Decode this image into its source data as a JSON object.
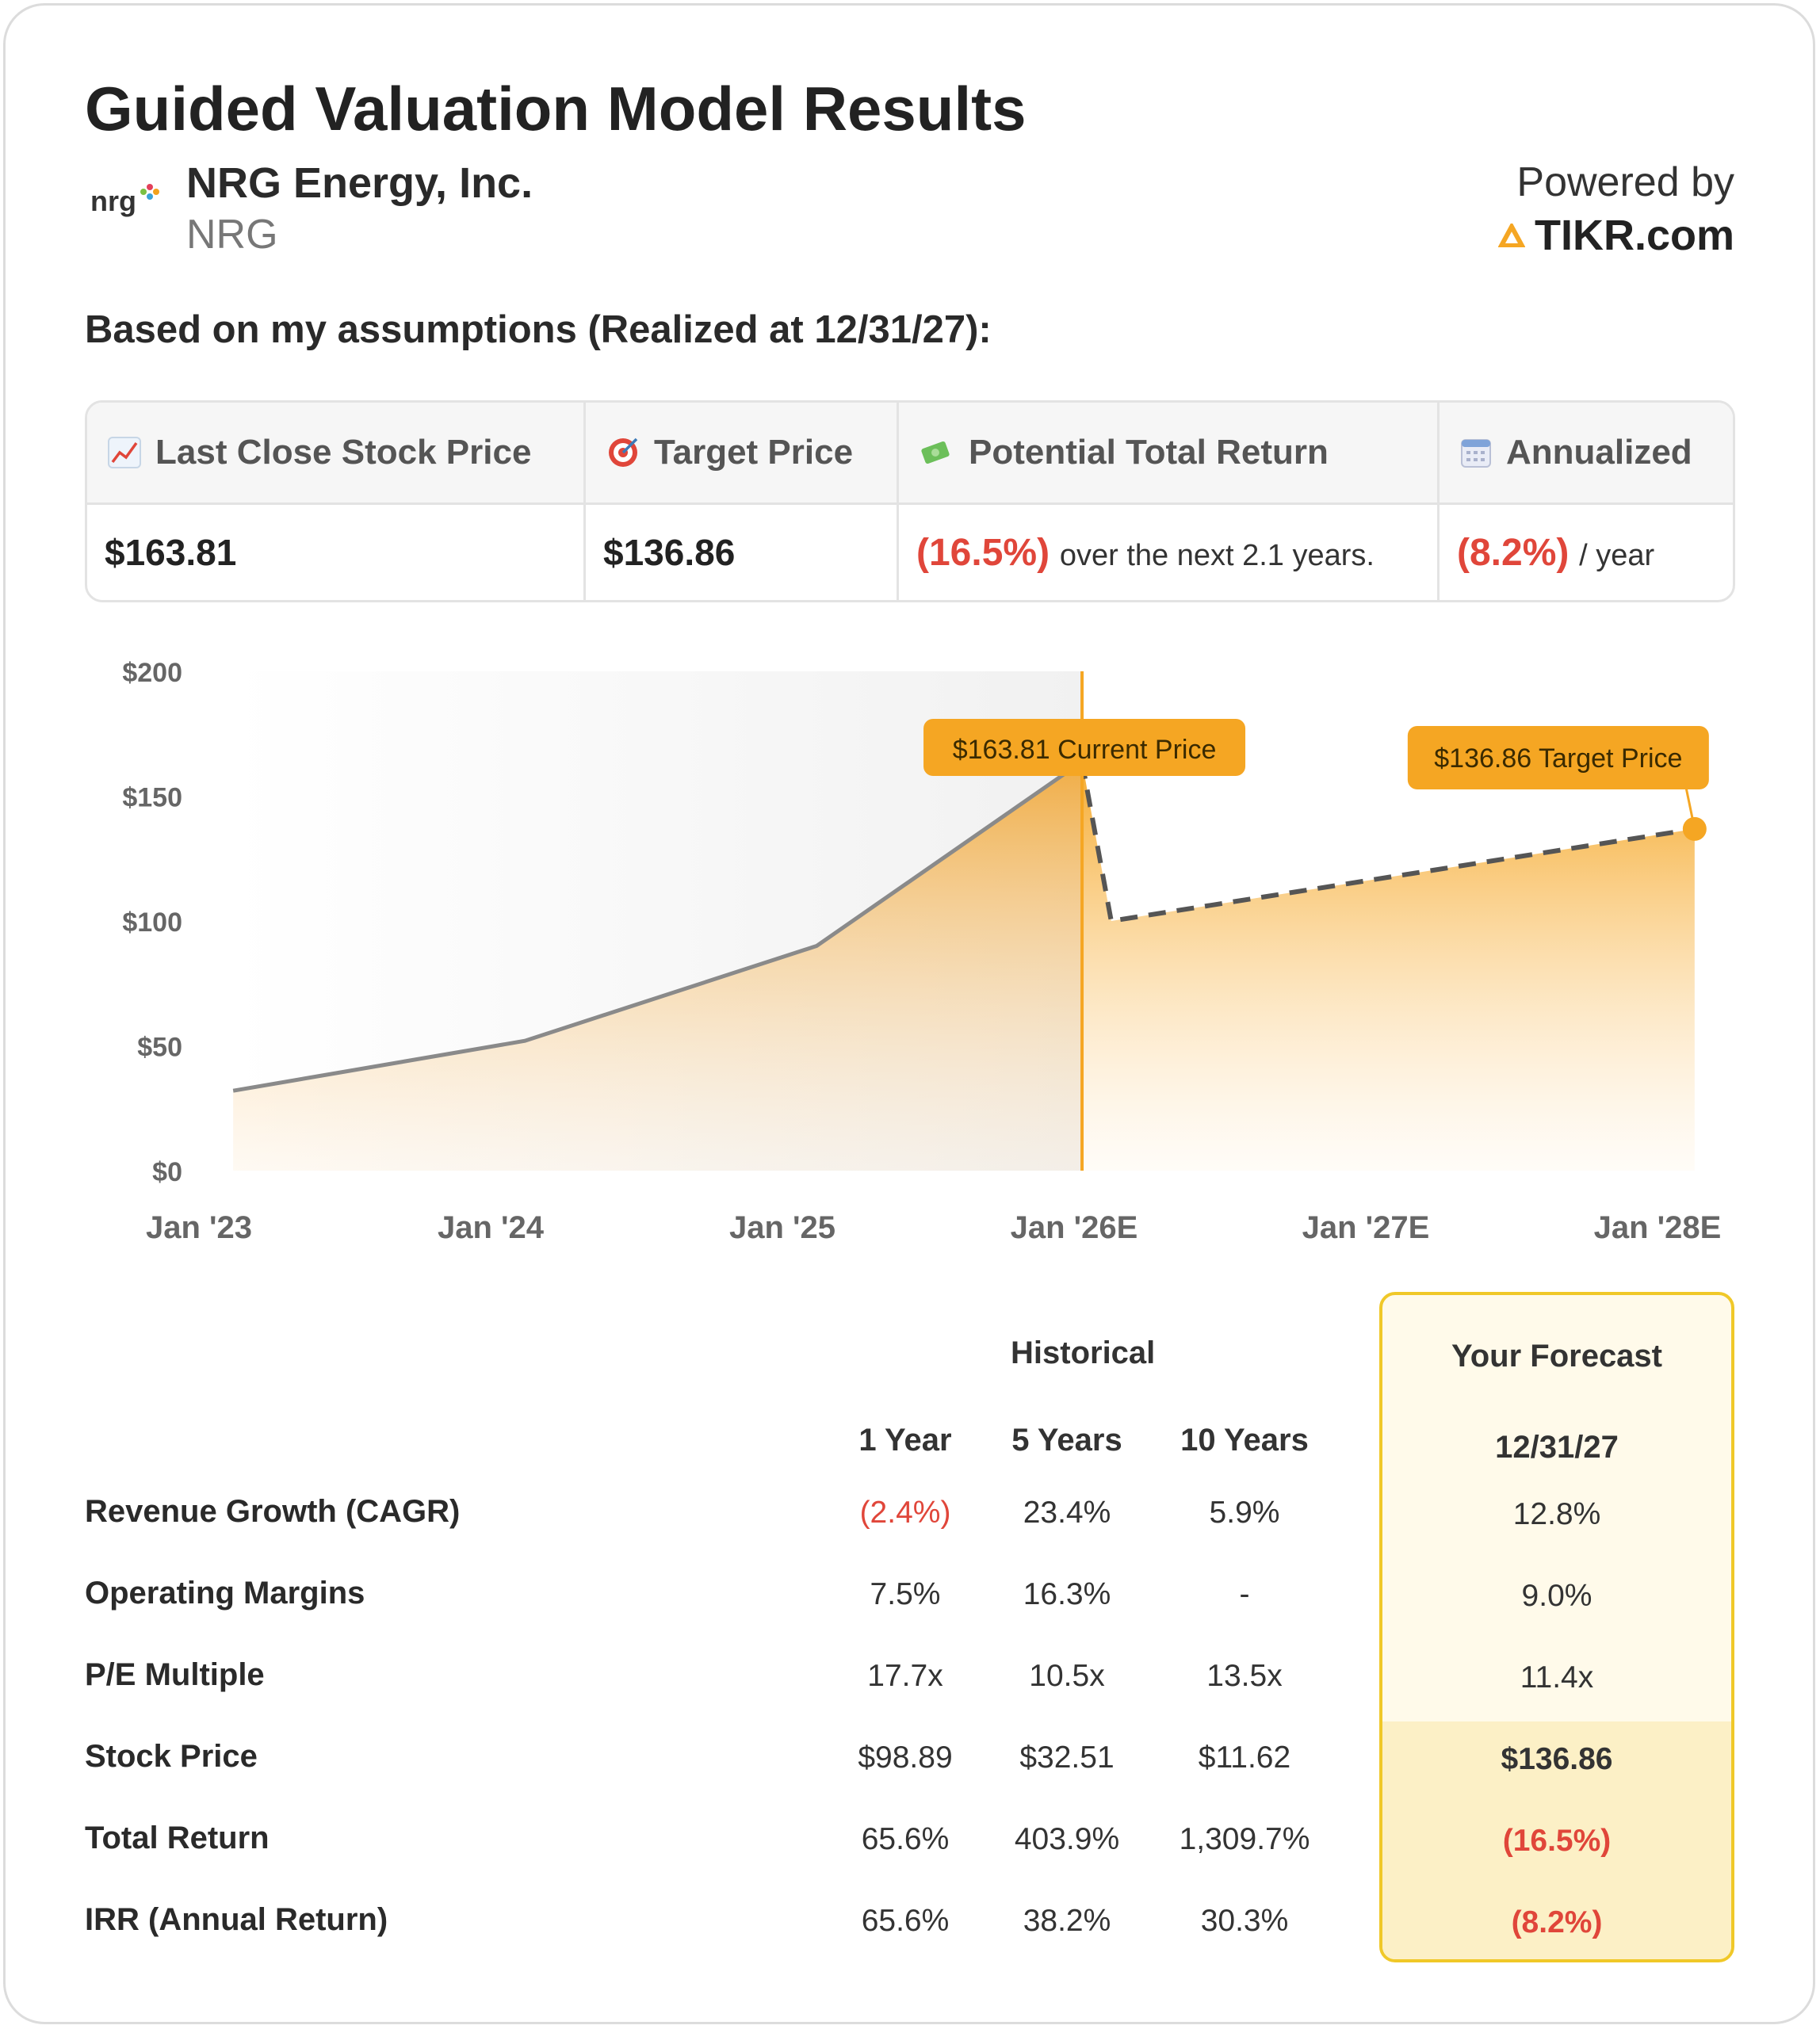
{
  "title": "Guided Valuation Model Results",
  "company": {
    "name": "NRG Energy, Inc.",
    "ticker": "NRG",
    "logo_text": "nrg"
  },
  "powered_by": {
    "label": "Powered by",
    "brand": "TIKR.com"
  },
  "assumptions_heading": "Based on my assumptions (Realized at 12/31/27):",
  "summary": {
    "last_close": {
      "label": "Last Close Stock Price",
      "icon": "chart-up-icon",
      "value": "$163.81"
    },
    "target": {
      "label": "Target Price",
      "icon": "target-icon",
      "value": "$136.86"
    },
    "total_return": {
      "label": "Potential Total Return",
      "icon": "money-icon",
      "value": "(16.5%)",
      "suffix": "over the next 2.1 years."
    },
    "annualized": {
      "label": "Annualized",
      "icon": "calendar-icon",
      "value": "(8.2%)",
      "suffix": "/ year"
    }
  },
  "chart_data": {
    "type": "area",
    "x_labels": [
      "Jan '23",
      "Jan '24",
      "Jan '25",
      "Jan '26E",
      "Jan '27E",
      "Jan '28E"
    ],
    "y_ticks": [
      "$0",
      "$50",
      "$100",
      "$150",
      "$200"
    ],
    "ylim": [
      0,
      200
    ],
    "historical": {
      "x": [
        0.12,
        1.12,
        2.12,
        3.03
      ],
      "y": [
        32,
        52,
        90,
        163.81
      ]
    },
    "forecast": {
      "x": [
        3.03,
        3.13,
        5.13
      ],
      "y": [
        163.81,
        100,
        136.86
      ]
    },
    "current_marker": {
      "x": 3.03,
      "label": "$163.81 Current Price"
    },
    "target_marker": {
      "x": 5.13,
      "y": 136.86,
      "label": "$136.86 Target Price"
    },
    "colors": {
      "accent": "#f5a623",
      "line": "#8a8a8a",
      "dash": "#555555"
    }
  },
  "table": {
    "historical_label": "Historical",
    "forecast_label": "Your Forecast",
    "columns": [
      "1 Year",
      "5 Years",
      "10 Years"
    ],
    "forecast_date": "12/31/27",
    "rows": [
      {
        "label": "Revenue Growth (CAGR)",
        "values": [
          "(2.4%)",
          "23.4%",
          "5.9%"
        ],
        "forecast": "12.8%"
      },
      {
        "label": "Operating Margins",
        "values": [
          "7.5%",
          "16.3%",
          "-"
        ],
        "forecast": "9.0%"
      },
      {
        "label": "P/E Multiple",
        "values": [
          "17.7x",
          "10.5x",
          "13.5x"
        ],
        "forecast": "11.4x"
      },
      {
        "label": "Stock Price",
        "values": [
          "$98.89",
          "$32.51",
          "$11.62"
        ],
        "forecast": "$136.86"
      },
      {
        "label": "Total Return",
        "values": [
          "65.6%",
          "403.9%",
          "1,309.7%"
        ],
        "forecast": "(16.5%)"
      },
      {
        "label": "IRR (Annual Return)",
        "values": [
          "65.6%",
          "38.2%",
          "30.3%"
        ],
        "forecast": "(8.2%)"
      }
    ]
  }
}
